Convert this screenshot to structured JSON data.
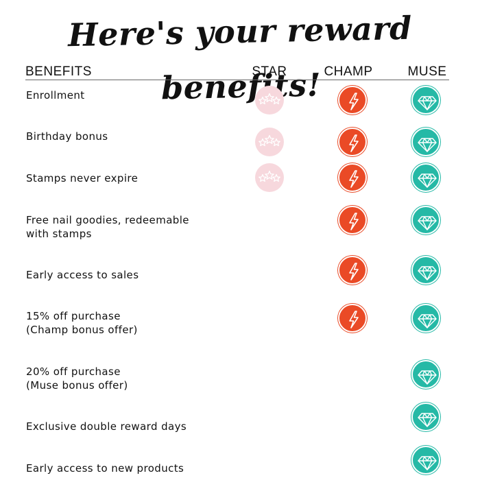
{
  "title": "Here's your reward benefits!",
  "columns": {
    "benefits": "BENEFITS",
    "star": "STAR",
    "champ": "CHAMP",
    "muse": "MUSE"
  },
  "colors": {
    "star": "#f7d8dd",
    "star_icon": "#ffffff",
    "champ": "#ea4a26",
    "champ_icon": "#ffffff",
    "muse": "#25b9a6",
    "muse_icon": "#ffffff"
  },
  "icons": {
    "star": "three-stars-icon",
    "champ": "lightning-bolt-icon",
    "muse": "diamond-icon"
  },
  "rows": [
    {
      "label": "Enrollment",
      "star": true,
      "champ": true,
      "muse": true
    },
    {
      "label": "Birthday bonus",
      "star": true,
      "champ": true,
      "muse": true
    },
    {
      "label": "Stamps never expire",
      "star": true,
      "champ": true,
      "muse": true
    },
    {
      "label": "Free nail goodies, redeemable\nwith stamps",
      "star": false,
      "champ": true,
      "muse": true
    },
    {
      "label": "Early access to sales",
      "star": false,
      "champ": true,
      "muse": true
    },
    {
      "label": "15% off purchase\n(Champ bonus offer)",
      "star": false,
      "champ": true,
      "muse": true
    },
    {
      "label": "20% off purchase\n(Muse bonus offer)",
      "star": false,
      "champ": false,
      "muse": true
    },
    {
      "label": "Exclusive double reward days",
      "star": false,
      "champ": false,
      "muse": true
    },
    {
      "label": "Early access to new products",
      "star": false,
      "champ": false,
      "muse": true
    }
  ]
}
